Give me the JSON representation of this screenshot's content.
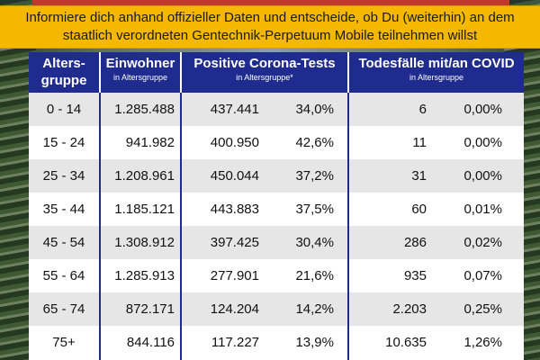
{
  "banner": {
    "text": "Informiere dich anhand offizieller Daten und entscheide, ob Du (weiterhin) an dem staatlich verordneten Gentechnik-Perpetuum Mobile teilnehmen willst"
  },
  "colors": {
    "banner_bg": "#f5b800",
    "header_bg": "#1f2b8e",
    "row_alt_bg": "#e6e6e6",
    "top_strip": "#c0392b"
  },
  "table": {
    "headers": {
      "age": {
        "main": "Alters-",
        "sub": "gruppe"
      },
      "population": {
        "main": "Einwohner",
        "sub": "in Altersgruppe"
      },
      "positive": {
        "main": "Positive Corona-Tests",
        "sub": "in Altersgruppe*"
      },
      "deaths": {
        "main": "Todesfälle mit/an COVID",
        "sub": "in Altersgruppe"
      }
    },
    "rows": [
      {
        "age": "0 - 14",
        "population": "1.285.488",
        "positive": "437.441",
        "positive_pct": "34,0%",
        "deaths": "6",
        "deaths_pct": "0,00%"
      },
      {
        "age": "15 - 24",
        "population": "941.982",
        "positive": "400.950",
        "positive_pct": "42,6%",
        "deaths": "11",
        "deaths_pct": "0,00%"
      },
      {
        "age": "25 - 34",
        "population": "1.208.961",
        "positive": "450.044",
        "positive_pct": "37,2%",
        "deaths": "31",
        "deaths_pct": "0,00%"
      },
      {
        "age": "35 - 44",
        "population": "1.185.121",
        "positive": "443.883",
        "positive_pct": "37,5%",
        "deaths": "60",
        "deaths_pct": "0,01%"
      },
      {
        "age": "45 - 54",
        "population": "1.308.912",
        "positive": "397.425",
        "positive_pct": "30,4%",
        "deaths": "286",
        "deaths_pct": "0,02%"
      },
      {
        "age": "55 - 64",
        "population": "1.285.913",
        "positive": "277.901",
        "positive_pct": "21,6%",
        "deaths": "935",
        "deaths_pct": "0,07%"
      },
      {
        "age": "65 - 74",
        "population": "872.171",
        "positive": "124.204",
        "positive_pct": "14,2%",
        "deaths": "2.203",
        "deaths_pct": "0,25%"
      },
      {
        "age": "75+",
        "population": "844.116",
        "positive": "117.227",
        "positive_pct": "13,9%",
        "deaths": "10.635",
        "deaths_pct": "1,26%"
      }
    ]
  }
}
